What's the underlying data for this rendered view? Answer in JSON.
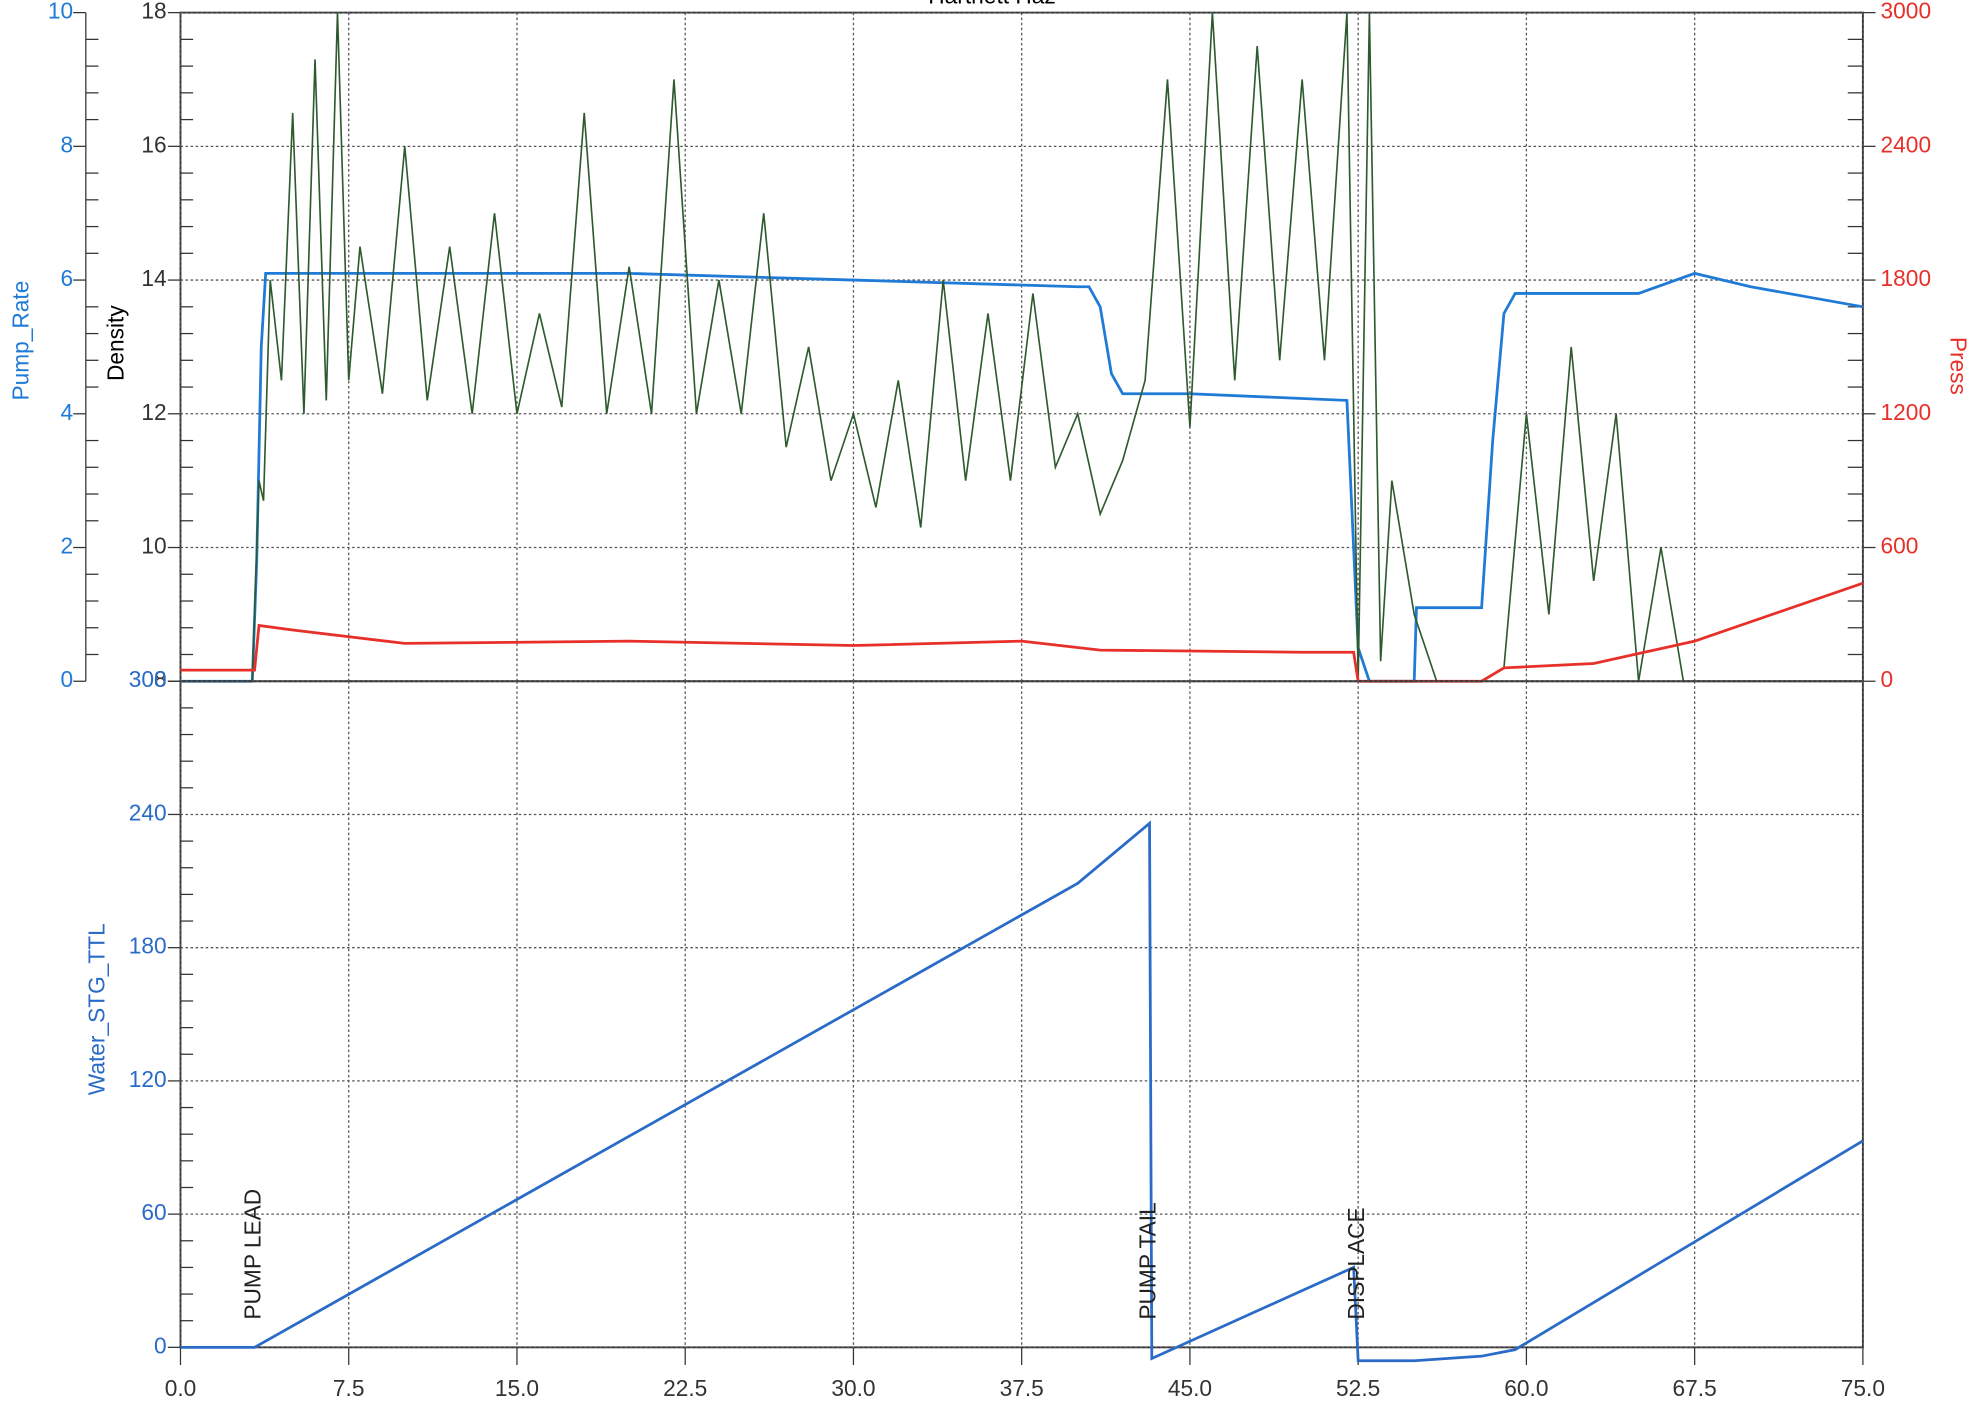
{
  "chart_data": [
    {
      "type": "line",
      "title": "Hartnett Haz",
      "xlim": [
        0,
        75
      ],
      "xticks": [
        0,
        7.5,
        15,
        22.5,
        30,
        37.5,
        45,
        52.5,
        60,
        67.5,
        75
      ],
      "ylabel": "Pump_Rate",
      "ylim": [
        0,
        10
      ],
      "yticks": [
        0,
        2,
        4,
        6,
        8,
        10
      ],
      "y3label": "Density",
      "y3lim": [
        8,
        18
      ],
      "y3ticks": [
        8,
        10,
        12,
        14,
        16,
        18
      ],
      "y2label": "Press",
      "y2lim": [
        0,
        3000
      ],
      "y2ticks": [
        0,
        600,
        1200,
        1800,
        2400,
        3000
      ],
      "grid": true,
      "series": [
        {
          "name": "Pump_Rate",
          "color": "#1f7bd6",
          "axis": "y",
          "x": [
            0,
            3.2,
            3.4,
            3.6,
            3.8,
            10,
            20,
            30,
            40,
            40.5,
            41,
            41.5,
            42,
            45,
            52,
            52.5,
            53,
            55,
            55.1,
            58,
            58.5,
            59,
            59.5,
            60,
            65,
            67.5,
            70,
            75
          ],
          "values": [
            0,
            0,
            1.8,
            5,
            6.1,
            6.1,
            6.1,
            6.0,
            5.9,
            5.9,
            5.6,
            4.6,
            4.3,
            4.3,
            4.2,
            0.5,
            0,
            0,
            1.1,
            1.1,
            3.6,
            5.5,
            5.8,
            5.8,
            5.8,
            6.1,
            5.9,
            5.6
          ]
        },
        {
          "name": "Density",
          "color": "#2e5a2e",
          "axis": "y3",
          "x": [
            0,
            3.2,
            3.5,
            3.7,
            4,
            4.5,
            5,
            5.5,
            6,
            6.5,
            7,
            7.5,
            8,
            9,
            10,
            11,
            12,
            13,
            14,
            15,
            16,
            17,
            18,
            19,
            20,
            21,
            22,
            23,
            24,
            25,
            26,
            27,
            28,
            29,
            30,
            31,
            32,
            33,
            34,
            35,
            36,
            37,
            38,
            39,
            40,
            41,
            42,
            43,
            44,
            45,
            46,
            47,
            48,
            49,
            50,
            51,
            52,
            52.5,
            53,
            53.5,
            54,
            55,
            56,
            57,
            58,
            59,
            60,
            61,
            62,
            63,
            64,
            65,
            66,
            67,
            68,
            70,
            72,
            74,
            75
          ],
          "values": [
            8,
            8,
            11,
            10.7,
            14,
            12.5,
            16.5,
            12,
            17.3,
            12.2,
            18,
            12.5,
            14.5,
            12.3,
            16,
            12.2,
            14.5,
            12,
            15,
            12,
            13.5,
            12.1,
            16.5,
            12,
            14.2,
            12,
            17,
            12,
            14,
            12,
            15,
            11.5,
            13,
            11,
            12,
            10.6,
            12.5,
            10.3,
            14,
            11,
            13.5,
            11,
            13.8,
            11.2,
            12,
            10.5,
            11.3,
            12.5,
            17,
            11.8,
            18,
            12.5,
            17.5,
            12.8,
            17,
            12.8,
            18,
            8,
            18,
            8.3,
            11,
            9,
            8,
            8,
            8,
            8.2,
            12,
            9,
            13,
            9.5,
            12,
            8,
            10,
            8,
            8,
            8,
            8,
            8,
            8
          ]
        },
        {
          "name": "Press",
          "color": "#e8302a",
          "axis": "y2",
          "x": [
            0,
            3.3,
            3.5,
            5,
            10,
            20,
            30,
            37.5,
            41,
            50,
            52.3,
            52.5,
            58,
            59,
            63,
            67.5,
            75
          ],
          "values": [
            50,
            50,
            250,
            230,
            170,
            180,
            160,
            180,
            140,
            130,
            130,
            0,
            0,
            60,
            80,
            180,
            440
          ]
        }
      ]
    },
    {
      "type": "line",
      "xlim": [
        0,
        75
      ],
      "xticks": [
        {
          "value": 0,
          "label": "0.0"
        },
        7.5,
        {
          "value": 15,
          "label": "15.0"
        },
        22.5,
        {
          "value": 30,
          "label": "30.0"
        },
        37.5,
        {
          "value": 45,
          "label": "45.0"
        },
        52.5,
        {
          "value": 60,
          "label": "60.0"
        },
        67.5,
        {
          "value": 75,
          "label": "75.0"
        }
      ],
      "ylabel": "Water_STG_TTL",
      "ylim": [
        0,
        300
      ],
      "yticks": [
        0,
        60,
        120,
        180,
        240,
        300
      ],
      "grid": true,
      "series": [
        {
          "name": "Water_STG_TTL",
          "color": "#2a6bc8",
          "axis": "y",
          "x": [
            0,
            3.3,
            40,
            43.2,
            43.3,
            52.3,
            52.5,
            55,
            58,
            59.5,
            75
          ],
          "values": [
            0,
            0,
            209,
            236,
            -5,
            36,
            -6,
            -6,
            -4,
            -1,
            93
          ]
        }
      ],
      "annotations": [
        {
          "text": "PUMP LEAD",
          "x": 3.3
        },
        {
          "text": "PUMP TAIL",
          "x": 43.2
        },
        {
          "text": "DISPLACE",
          "x": 52.5
        }
      ]
    }
  ]
}
